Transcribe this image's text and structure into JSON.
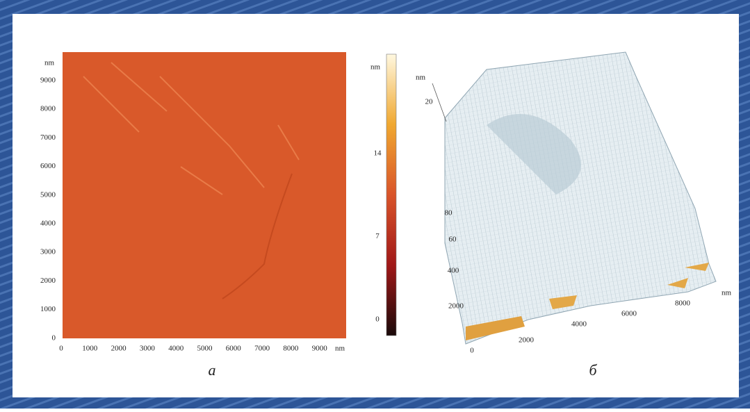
{
  "panel_a": {
    "y_unit": "nm",
    "y_ticks": [
      9000,
      8000,
      7000,
      6000,
      5000,
      4000,
      3000,
      2000,
      1000,
      0
    ],
    "x_ticks": [
      0,
      1000,
      2000,
      3000,
      4000,
      5000,
      6000,
      7000,
      8000,
      9000
    ],
    "x_unit": "nm",
    "colorbar": {
      "unit": "nm",
      "ticks": [
        14,
        7,
        0
      ]
    },
    "caption": "а"
  },
  "panel_b": {
    "axis_labels": [
      "nm",
      "20",
      "80",
      "60",
      "400",
      "2000",
      "0",
      "2000",
      "4000",
      "6000",
      "8000",
      "nm"
    ],
    "caption": "б"
  }
}
